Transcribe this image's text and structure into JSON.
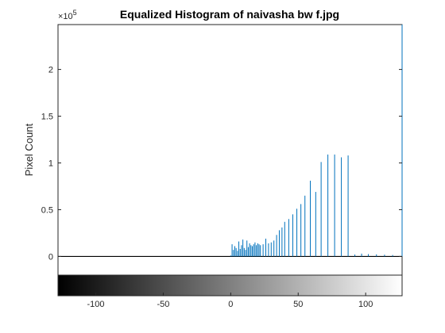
{
  "chart_data": {
    "type": "stem",
    "title": "Equalized Histogram of naivasha bw f.jpg",
    "xlabel": "",
    "ylabel": "Pixel Count",
    "xlim": [
      -128,
      127
    ],
    "ylim": [
      -20000,
      248000
    ],
    "y_exponent": {
      "base": "×10",
      "power": "5"
    },
    "y_ticks": [
      0,
      50000,
      100000,
      150000,
      200000
    ],
    "y_tick_labels": [
      "0",
      "0.5",
      "1",
      "1.5",
      "2"
    ],
    "x_ticks": [
      -100,
      -50,
      0,
      50,
      100
    ],
    "x_tick_labels": [
      "-100",
      "-50",
      "0",
      "50",
      "100"
    ],
    "grid": false,
    "colorbar": {
      "type": "grayscale",
      "range": [
        -128,
        127
      ]
    },
    "series": [
      {
        "color": "#0072bd",
        "x": [
          0,
          1,
          2,
          3,
          4,
          5,
          6,
          7,
          8,
          9,
          10,
          11,
          12,
          13,
          14,
          15,
          16,
          17,
          18,
          19,
          20,
          21,
          22,
          24,
          26,
          28,
          30,
          32,
          34,
          36,
          38,
          40,
          43,
          46,
          49,
          52,
          55,
          59,
          63,
          67,
          72,
          77,
          82,
          87,
          92,
          97,
          102,
          108,
          114,
          120,
          127
        ],
        "y": [
          1000,
          13000,
          7000,
          11000,
          9000,
          6000,
          16000,
          8000,
          12000,
          18000,
          9000,
          7000,
          17000,
          10000,
          14000,
          12000,
          11000,
          13000,
          15000,
          12000,
          14000,
          13000,
          12000,
          13000,
          19000,
          14000,
          15000,
          17000,
          23000,
          28000,
          31000,
          37000,
          40000,
          45000,
          51000,
          56000,
          65000,
          81000,
          69000,
          101000,
          109000,
          109000,
          106000,
          108000,
          2000,
          3000,
          2500,
          2200,
          1800,
          1500,
          248000
        ]
      }
    ]
  },
  "colors": {
    "stem": "#0072bd",
    "axes": "#262626",
    "background": "#ffffff"
  }
}
